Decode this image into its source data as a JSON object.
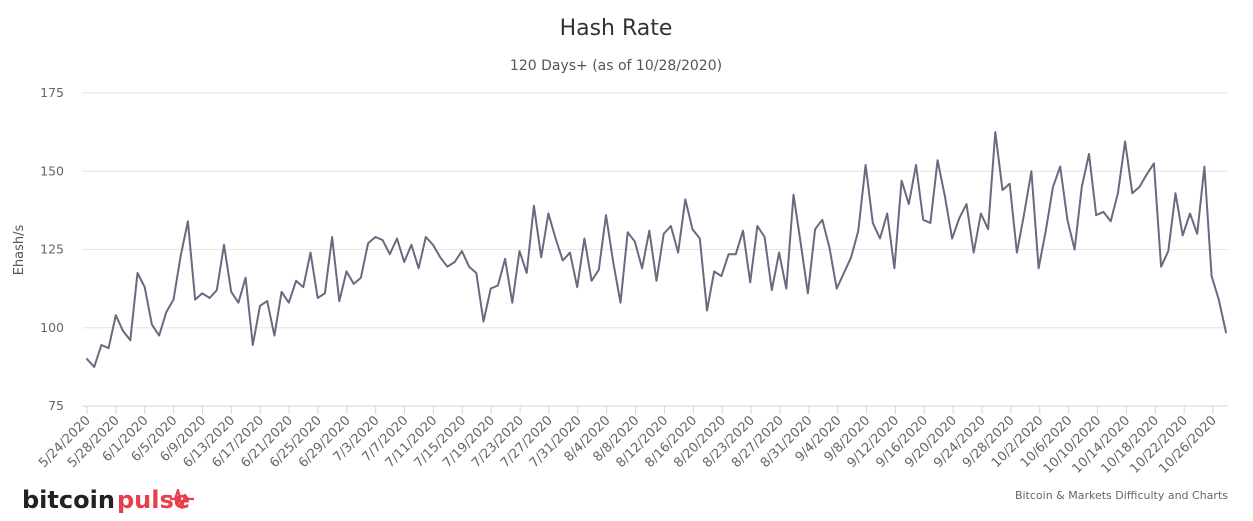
{
  "header": {
    "title": "Hash Rate",
    "subtitle": "120 Days+ (as of 10/28/2020)"
  },
  "footer": {
    "logo_text_a": "bitcoin",
    "logo_text_b": "pulse",
    "credit": "Bitcoin & Markets Difficulty and Charts"
  },
  "colors": {
    "series": "#676a80",
    "logo_accent": "#e8404b"
  },
  "chart_data": {
    "type": "line",
    "title": "Hash Rate",
    "subtitle": "120 Days+ (as of 10/28/2020)",
    "ylabel": "Ehash/s",
    "xlabel": "",
    "ylim": [
      75,
      175
    ],
    "yticks": [
      75,
      100,
      125,
      150,
      175
    ],
    "grid": true,
    "legend": "none",
    "x_tick_labels": [
      "5/24/2020",
      "5/28/2020",
      "6/1/2020",
      "6/5/2020",
      "6/9/2020",
      "6/13/2020",
      "6/17/2020",
      "6/21/2020",
      "6/25/2020",
      "6/29/2020",
      "7/3/2020",
      "7/7/2020",
      "7/11/2020",
      "7/15/2020",
      "7/19/2020",
      "7/23/2020",
      "7/27/2020",
      "7/31/2020",
      "8/4/2020",
      "8/8/2020",
      "8/12/2020",
      "8/16/2020",
      "8/20/2020",
      "8/23/2020",
      "8/27/2020",
      "8/31/2020",
      "9/4/2020",
      "9/8/2020",
      "9/12/2020",
      "9/16/2020",
      "9/20/2020",
      "9/24/2020",
      "9/28/2020",
      "10/2/2020",
      "10/6/2020",
      "10/10/2020",
      "10/14/2020",
      "10/18/2020",
      "10/22/2020",
      "10/26/2020"
    ],
    "series": [
      {
        "values": [
          90,
          87.5,
          94.5,
          93.5,
          104,
          99,
          96,
          117.5,
          113,
          101,
          97.5,
          105,
          109,
          123,
          134,
          109,
          111,
          109.5,
          112,
          126.5,
          111.5,
          108,
          116,
          94.5,
          107,
          108.5,
          97.5,
          111.5,
          108,
          115,
          113,
          124,
          109.5,
          111,
          129,
          108.5,
          118,
          114,
          116,
          127,
          129,
          128,
          123.5,
          128.5,
          121,
          126.5,
          119,
          129,
          126.5,
          122.5,
          119.5,
          121,
          124.5,
          119.5,
          117.5,
          102,
          112.5,
          113.5,
          122,
          108,
          124.5,
          117.5,
          139,
          122.5,
          136.5,
          128.5,
          121.5,
          124,
          113,
          128.5,
          115,
          118.5,
          136,
          121,
          108,
          130.5,
          127.5,
          119,
          131,
          115,
          130,
          132.5,
          124,
          141,
          131.5,
          128.5,
          105.5,
          118,
          116.5,
          123.5,
          123.5,
          131,
          114.5,
          132.5,
          129,
          112,
          124,
          112.5,
          142.5,
          127,
          111,
          131.5,
          134.5,
          125.5,
          112.5,
          117.5,
          122.5,
          131,
          152,
          133.5,
          128.5,
          136.5,
          119,
          147,
          139.5,
          152,
          134.5,
          133.5,
          153.5,
          142,
          128.5,
          135,
          139.5,
          124,
          136.5,
          131.5,
          162.5,
          144,
          146,
          124,
          136.5,
          150,
          119,
          131,
          145,
          151.5,
          134.5,
          125,
          145,
          155.5,
          136,
          137,
          134,
          143,
          159.5,
          143,
          145,
          149,
          152.5,
          119.5,
          124.5,
          143,
          129.5,
          136.5,
          130,
          151.5,
          116.5,
          109,
          98.5
        ]
      }
    ]
  }
}
